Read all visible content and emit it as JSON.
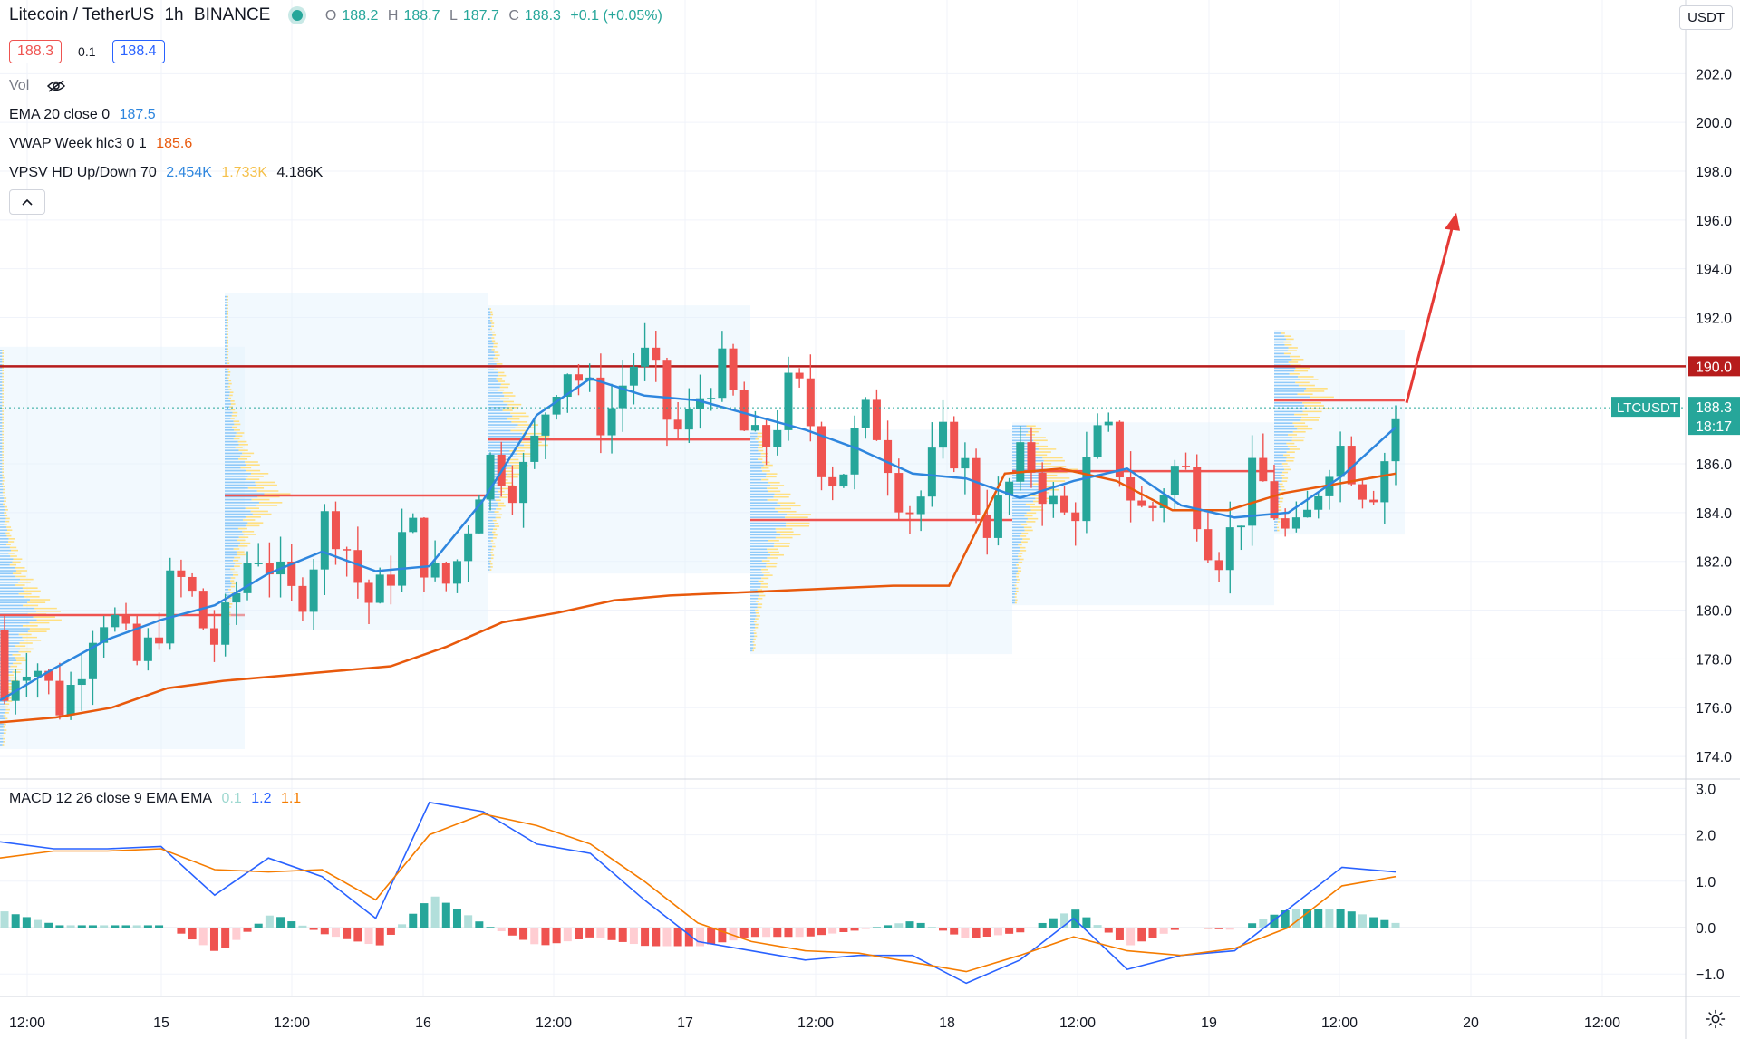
{
  "header": {
    "symbol": "Litecoin / TetherUS",
    "interval": "1h",
    "exchange": "BINANCE",
    "ohlc": {
      "o_label": "O",
      "o": "188.2",
      "h_label": "H",
      "h": "188.7",
      "l_label": "L",
      "l": "187.7",
      "c_label": "C",
      "c": "188.3",
      "change": "+0.1 (+0.05%)"
    },
    "sell_price": "188.3",
    "spread": "0.1",
    "buy_price": "188.4"
  },
  "indicators": {
    "vol": "Vol",
    "ema": {
      "label": "EMA 20 close 0",
      "value": "187.5"
    },
    "vwap": {
      "label": "VWAP Week hlc3 0 1",
      "value": "185.6"
    },
    "vpsv": {
      "label": "VPSV HD Up/Down 70",
      "up": "2.454K",
      "down": "1.733K",
      "total": "4.186K"
    },
    "macd": {
      "label": "MACD 12 26 close 9 EMA EMA",
      "hist": "0.1",
      "macd": "1.2",
      "signal": "1.1"
    }
  },
  "axis": {
    "currency": "USDT",
    "price_ticks": [
      "202.0",
      "200.0",
      "198.0",
      "196.0",
      "194.0",
      "192.0",
      "190.0",
      "188.3",
      "186.0",
      "184.0",
      "182.0",
      "180.0",
      "178.0",
      "176.0",
      "174.0"
    ],
    "macd_ticks": [
      "3.0",
      "2.0",
      "1.0",
      "0.0",
      "−1.0"
    ],
    "time_ticks": [
      "12:00",
      "15",
      "12:00",
      "16",
      "12:00",
      "17",
      "12:00",
      "18",
      "12:00",
      "19",
      "12:00",
      "20",
      "12:00"
    ],
    "symbol_tag": "LTCUSDT",
    "current_price": "188.3",
    "countdown": "18:17",
    "resistance_label": "190.0"
  },
  "colors": {
    "up": "#26a69a",
    "down": "#ef5350",
    "ema": "#2e86de",
    "vwap": "#e8590c",
    "resistance": "#b71c1c",
    "arrow": "#e53935",
    "macd": "#2962ff",
    "signal": "#f57c00"
  },
  "chart_data": [
    {
      "type": "candlestick",
      "title": "Litecoin / TetherUS, 1h, BINANCE",
      "x_range": [
        "14 12:00",
        "20 12:00"
      ],
      "ylim": [
        173,
        203.5
      ],
      "resistance": 190.0,
      "current_price": 188.3,
      "arrow": {
        "from": 188.5,
        "to": 196.3,
        "direction": "up"
      },
      "series": [
        {
          "name": "EMA 20 close 0",
          "values": [
            176.3,
            177.6,
            178.8,
            179.6,
            180.2,
            181.5,
            182.4,
            181.6,
            181.8,
            184.5,
            188.0,
            189.5,
            188.8,
            188.6,
            188.0,
            187.4,
            186.6,
            185.6,
            185.4,
            184.6,
            185.3,
            185.8,
            184.3,
            183.8,
            184.0,
            185.5,
            187.5
          ]
        },
        {
          "name": "VWAP Week hlc3 0 1",
          "values": [
            175.4,
            175.6,
            176.0,
            176.8,
            177.1,
            177.3,
            177.5,
            177.7,
            178.5,
            179.5,
            179.9,
            180.4,
            180.6,
            180.7,
            180.8,
            180.9,
            181.0,
            181.0,
            185.6,
            185.8,
            185.3,
            184.1,
            184.1,
            184.8,
            185.2,
            185.6
          ]
        },
        {
          "name": "Volume profile POC",
          "values": [
            {
              "x0": "14 03:00",
              "x1": "14 12:00",
              "y": 179.8
            },
            {
              "x0": "15 15:00",
              "x1": "16 15:00",
              "y": 184.7
            },
            {
              "x0": "16 15:00",
              "x1": "17 15:00",
              "y": 187.0
            },
            {
              "x0": "17 15:00",
              "x1": "18 15:00",
              "y": 183.7
            },
            {
              "x0": "18 15:00",
              "x1": "19 15:00",
              "y": 185.7
            },
            {
              "x0": "19 15:00",
              "x1": "20 01:00",
              "y": 188.6
            }
          ]
        }
      ]
    },
    {
      "type": "bar",
      "title": "MACD 12 26 close 9 EMA EMA",
      "ylim": [
        -1.3,
        3.2
      ],
      "series": [
        {
          "name": "MACD",
          "values": [
            1.85,
            1.7,
            1.7,
            1.75,
            0.7,
            1.5,
            1.1,
            0.2,
            2.7,
            2.5,
            1.8,
            1.6,
            0.6,
            -0.3,
            -0.5,
            -0.7,
            -0.6,
            -0.6,
            -1.2,
            -0.7,
            0.2,
            -0.9,
            -0.6,
            -0.5,
            0.4,
            1.3,
            1.2
          ]
        },
        {
          "name": "Signal",
          "values": [
            1.5,
            1.65,
            1.65,
            1.7,
            1.25,
            1.2,
            1.25,
            0.6,
            2.0,
            2.45,
            2.2,
            1.8,
            1.0,
            0.1,
            -0.3,
            -0.5,
            -0.55,
            -0.75,
            -0.95,
            -0.6,
            -0.2,
            -0.5,
            -0.6,
            -0.45,
            0.0,
            0.9,
            1.1
          ]
        }
      ]
    }
  ]
}
